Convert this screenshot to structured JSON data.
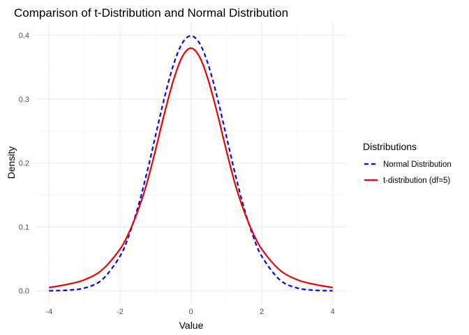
{
  "chart_data": {
    "type": "line",
    "title": "Comparison of t-Distribution and Normal Distribution",
    "xlabel": "Value",
    "ylabel": "Density",
    "xlim": [
      -4,
      4
    ],
    "ylim": [
      0,
      0.4
    ],
    "x_ticks": [
      -4,
      -2,
      0,
      2,
      4
    ],
    "x_tick_labels": [
      "-4",
      "-2",
      "0",
      "2",
      "4"
    ],
    "y_ticks": [
      0.0,
      0.1,
      0.2,
      0.3,
      0.4
    ],
    "y_tick_labels": [
      "0.0",
      "0.1",
      "0.2",
      "0.3",
      "0.4"
    ],
    "grid": true,
    "legend": {
      "title": "Distributions",
      "position": "right"
    },
    "x": [
      -4.0,
      -3.5,
      -3.0,
      -2.5,
      -2.0,
      -1.75,
      -1.5,
      -1.25,
      -1.0,
      -0.75,
      -0.5,
      -0.25,
      0.0,
      0.25,
      0.5,
      0.75,
      1.0,
      1.25,
      1.5,
      1.75,
      2.0,
      2.5,
      3.0,
      3.5,
      4.0
    ],
    "series": [
      {
        "name": "Normal Distribution",
        "color": "#0000ff",
        "line_style": "dashed",
        "values": [
          0.0001,
          0.0009,
          0.0044,
          0.0175,
          0.054,
          0.0863,
          0.1295,
          0.1826,
          0.242,
          0.3011,
          0.3521,
          0.3867,
          0.3989,
          0.3867,
          0.3521,
          0.3011,
          0.242,
          0.1826,
          0.1295,
          0.0863,
          0.054,
          0.0175,
          0.0044,
          0.0009,
          0.0001
        ]
      },
      {
        "name": "t-distribution (df=5)",
        "color": "#ee0000",
        "line_style": "solid",
        "values": [
          0.0051,
          0.0099,
          0.0173,
          0.0329,
          0.0651,
          0.0907,
          0.1245,
          0.1666,
          0.2197,
          0.2765,
          0.3279,
          0.3655,
          0.3796,
          0.3655,
          0.3279,
          0.2765,
          0.2197,
          0.1666,
          0.1245,
          0.0907,
          0.0651,
          0.0329,
          0.0173,
          0.0099,
          0.0051
        ]
      }
    ]
  }
}
